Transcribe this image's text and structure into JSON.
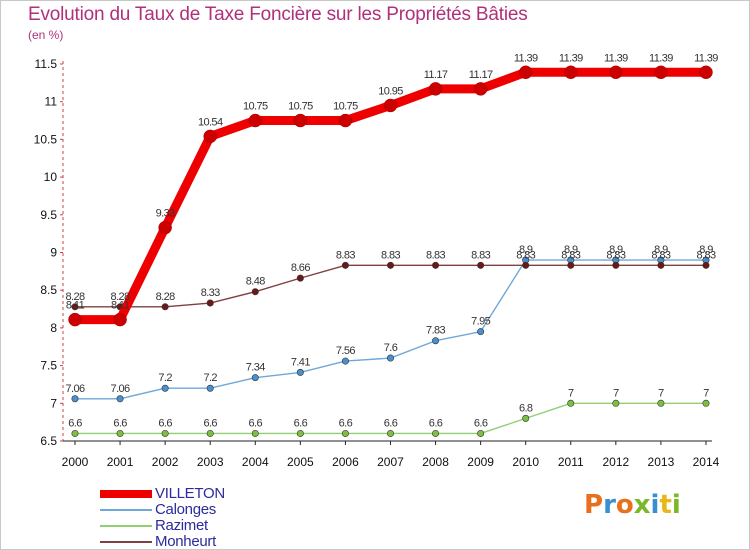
{
  "title": "Evolution du Taux de Taxe Foncière sur les Propriétés Bâties",
  "unit_label": "(en %)",
  "brand": {
    "logo_text": "Proxiti",
    "letter_colors": [
      "#e8701a",
      "#3a8fd0",
      "#e8701a",
      "#7ab828",
      "#3a8fd0",
      "#e8b818",
      "#7ab828"
    ]
  },
  "chart_data": {
    "type": "line",
    "title": "Evolution du Taux de Taxe Foncière sur les Propriétés Bâties",
    "ylabel": "(en %)",
    "xlabel": "",
    "ylim": [
      6.5,
      11.5
    ],
    "yticks": [
      "6.5",
      "7",
      "7.5",
      "8",
      "8.5",
      "9",
      "9.5",
      "10",
      "10.5",
      "11",
      "11.5"
    ],
    "x": [
      "2000",
      "2001",
      "2002",
      "2003",
      "2004",
      "2005",
      "2006",
      "2007",
      "2008",
      "2009",
      "2010",
      "2011",
      "2012",
      "2013",
      "2014"
    ],
    "series": [
      {
        "name": "Razimet",
        "color": "#90d070",
        "marker": "#7cc040",
        "values": [
          6.6,
          6.6,
          6.6,
          6.6,
          6.6,
          6.6,
          6.6,
          6.6,
          6.6,
          6.6,
          6.8,
          7,
          7,
          7,
          7
        ],
        "labels": [
          "6.6",
          "6.6",
          "6.6",
          "6.6",
          "6.6",
          "6.6",
          "6.6",
          "6.6",
          "6.6",
          "6.6",
          "6.8",
          "7",
          "7",
          "7",
          "7"
        ]
      },
      {
        "name": "Calonges",
        "color": "#70a8d8",
        "marker": "#4a90d0",
        "values": [
          7.06,
          7.06,
          7.2,
          7.2,
          7.34,
          7.41,
          7.56,
          7.6,
          7.83,
          7.95,
          8.9,
          8.9,
          8.9,
          8.9,
          8.9
        ],
        "labels": [
          "7.06",
          "7.06",
          "7.2",
          "7.2",
          "7.34",
          "7.41",
          "7.56",
          "7.6",
          "7.83",
          "7.95",
          "8.9",
          "8.9",
          "8.9",
          "8.9",
          "8.9"
        ]
      },
      {
        "name": "Monheurt",
        "color": "#804040",
        "marker": "#6a1818",
        "values": [
          8.28,
          8.28,
          8.28,
          8.33,
          8.48,
          8.66,
          8.83,
          8.83,
          8.83,
          8.83,
          8.83,
          8.83,
          8.83,
          8.83,
          8.83
        ],
        "labels": [
          "8.28",
          "8.28",
          "8.28",
          "8.33",
          "8.48",
          "8.66",
          "8.83",
          "8.83",
          "8.83",
          "8.83",
          "8.83",
          "8.83",
          "8.83",
          "8.83",
          "8.83"
        ]
      },
      {
        "name": "VILLETON",
        "color": "#ee0000",
        "marker": "#cc0000",
        "values": [
          8.11,
          8.11,
          9.33,
          10.54,
          10.75,
          10.75,
          10.75,
          10.95,
          11.17,
          11.17,
          11.39,
          11.39,
          11.39,
          11.39,
          11.39
        ],
        "labels": [
          "8.11",
          "8.11",
          "9.33",
          "10.54",
          "10.75",
          "10.75",
          "10.75",
          "10.95",
          "11.17",
          "11.17",
          "11.39",
          "11.39",
          "11.39",
          "11.39",
          "11.39"
        ]
      }
    ],
    "legend_order": [
      "VILLETON",
      "Calonges",
      "Razimet",
      "Monheurt"
    ]
  }
}
